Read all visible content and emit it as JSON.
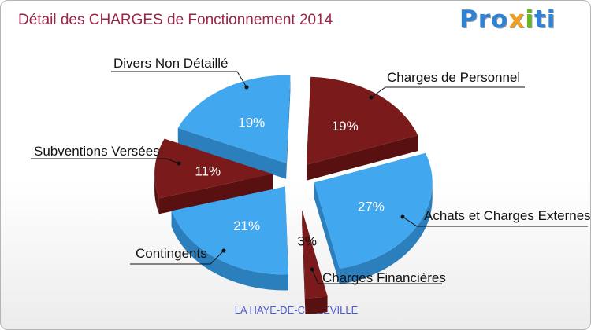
{
  "title": "Détail des CHARGES de Fonctionnement 2014",
  "logo": {
    "p1": "Pro",
    "p2": "x",
    "p3": "i",
    "p4": "ti"
  },
  "subtitle": "LA HAYE-DE-CALLEVILLE",
  "colors": {
    "dark": "#7a1a1a",
    "light": "#41a8f0"
  },
  "chart_data": {
    "type": "pie",
    "title": "Détail des CHARGES de Fonctionnement 2014",
    "slices": [
      {
        "label": "Charges de Personnel",
        "value": 19,
        "pct_label": "19%",
        "color": "#7a1a1a",
        "side_color": "#581010",
        "pct_color": "#ffffff"
      },
      {
        "label": "Achats et Charges Externes",
        "value": 27,
        "pct_label": "27%",
        "color": "#41a8f0",
        "side_color": "#2c7fbd",
        "pct_color": "#ffffff"
      },
      {
        "label": "Charges Financières",
        "value": 3,
        "pct_label": "3%",
        "color": "#7a1a1a",
        "side_color": "#581010",
        "pct_color": "#111111"
      },
      {
        "label": "Contingents",
        "value": 21,
        "pct_label": "21%",
        "color": "#41a8f0",
        "side_color": "#2c7fbd",
        "pct_color": "#ffffff"
      },
      {
        "label": "Subventions Versées",
        "value": 11,
        "pct_label": "11%",
        "color": "#7a1a1a",
        "side_color": "#581010",
        "pct_color": "#ffffff"
      },
      {
        "label": "Divers Non Détaillé",
        "value": 19,
        "pct_label": "19%",
        "color": "#41a8f0",
        "side_color": "#2c7fbd",
        "pct_color": "#ffffff"
      }
    ]
  }
}
